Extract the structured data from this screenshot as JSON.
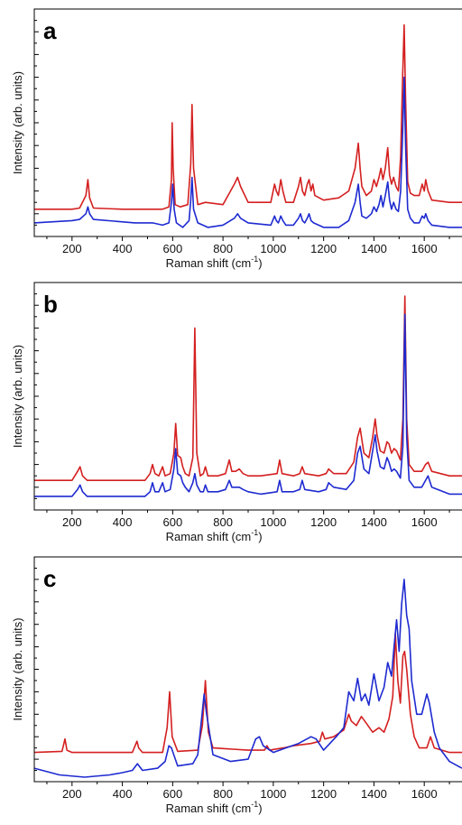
{
  "chart_data": [
    {
      "type": "line",
      "panel_label": "a",
      "xlabel_main": "Raman shift (cm",
      "xlabel_sup": "-1",
      "xlabel_close": ")",
      "ylabel": "Intensity (arb. units)",
      "xlim": [
        50,
        1750
      ],
      "ylim": [
        0,
        10
      ],
      "x_ticks": [
        200,
        400,
        600,
        800,
        1000,
        1200,
        1400,
        1600
      ],
      "y_tick_labels": "none",
      "grid": false,
      "series": [
        {
          "color": "#d42020",
          "x": [
            50,
            200,
            230,
            255,
            263,
            270,
            285,
            400,
            560,
            585,
            595,
            598,
            602,
            610,
            630,
            660,
            672,
            677,
            683,
            700,
            730,
            800,
            845,
            858,
            870,
            900,
            990,
            1005,
            1012,
            1020,
            1030,
            1038,
            1050,
            1080,
            1100,
            1108,
            1116,
            1125,
            1135,
            1142,
            1150,
            1157,
            1165,
            1200,
            1260,
            1300,
            1325,
            1338,
            1345,
            1352,
            1370,
            1390,
            1400,
            1410,
            1420,
            1428,
            1436,
            1445,
            1455,
            1462,
            1470,
            1478,
            1488,
            1497,
            1506,
            1514,
            1520,
            1526,
            1534,
            1545,
            1560,
            1580,
            1592,
            1600,
            1606,
            1615,
            1630,
            1700,
            1750
          ],
          "y": [
            1.2,
            1.2,
            1.25,
            1.8,
            2.5,
            1.7,
            1.25,
            1.2,
            1.2,
            1.3,
            2.5,
            5.0,
            3.0,
            1.4,
            1.3,
            1.4,
            3.2,
            5.8,
            3.0,
            1.4,
            1.5,
            1.4,
            2.3,
            2.6,
            2.2,
            1.5,
            1.5,
            2.3,
            2.0,
            1.8,
            2.5,
            2.0,
            1.5,
            1.5,
            2.2,
            2.6,
            2.0,
            1.8,
            2.3,
            2.5,
            2.0,
            2.3,
            1.8,
            1.6,
            1.7,
            2.0,
            3.0,
            4.1,
            3.0,
            2.2,
            1.8,
            2.0,
            2.5,
            2.2,
            2.6,
            3.0,
            2.5,
            3.0,
            3.9,
            2.7,
            2.3,
            2.6,
            2.2,
            2.0,
            3.5,
            7.0,
            9.3,
            6.0,
            2.4,
            1.9,
            1.8,
            1.8,
            2.3,
            2.0,
            2.5,
            2.0,
            1.6,
            1.5,
            1.5
          ]
        },
        {
          "color": "#1e2ad0",
          "x": [
            50,
            200,
            230,
            255,
            263,
            270,
            285,
            450,
            520,
            560,
            585,
            595,
            600,
            606,
            615,
            640,
            665,
            672,
            677,
            683,
            700,
            740,
            800,
            845,
            858,
            870,
            900,
            990,
            1005,
            1012,
            1020,
            1030,
            1038,
            1050,
            1080,
            1100,
            1108,
            1116,
            1125,
            1135,
            1142,
            1150,
            1160,
            1200,
            1260,
            1300,
            1325,
            1338,
            1345,
            1352,
            1370,
            1390,
            1400,
            1410,
            1420,
            1428,
            1436,
            1445,
            1455,
            1462,
            1470,
            1478,
            1488,
            1497,
            1506,
            1514,
            1520,
            1526,
            1534,
            1545,
            1560,
            1580,
            1592,
            1600,
            1606,
            1615,
            1630,
            1700,
            1750
          ],
          "y": [
            0.6,
            0.7,
            0.75,
            1.0,
            1.3,
            1.0,
            0.75,
            0.6,
            0.6,
            0.5,
            0.6,
            1.5,
            2.3,
            1.2,
            0.6,
            0.4,
            0.7,
            1.6,
            2.6,
            1.2,
            0.6,
            0.4,
            0.5,
            0.8,
            1.0,
            0.8,
            0.6,
            0.5,
            0.9,
            0.7,
            0.6,
            0.9,
            0.7,
            0.5,
            0.5,
            0.8,
            1.0,
            0.7,
            0.6,
            0.8,
            1.0,
            0.7,
            0.6,
            0.4,
            0.4,
            0.7,
            1.5,
            2.3,
            1.5,
            0.9,
            0.8,
            1.0,
            1.3,
            1.1,
            1.4,
            1.8,
            1.3,
            1.8,
            2.4,
            1.6,
            1.2,
            1.5,
            1.2,
            1.1,
            2.0,
            4.5,
            7.0,
            4.0,
            1.2,
            0.8,
            0.6,
            0.6,
            0.9,
            0.8,
            1.0,
            0.7,
            0.5,
            0.4,
            0.4
          ]
        }
      ]
    },
    {
      "type": "line",
      "panel_label": "b",
      "xlabel_main": "Raman shift (cm",
      "xlabel_sup": "-1",
      "xlabel_close": ")",
      "ylabel": "Intensity (arb. units)",
      "xlim": [
        50,
        1750
      ],
      "ylim": [
        0,
        10
      ],
      "x_ticks": [
        200,
        400,
        600,
        800,
        1000,
        1200,
        1400,
        1600
      ],
      "y_tick_labels": "none",
      "grid": false,
      "series": [
        {
          "color": "#d42020",
          "x": [
            50,
            200,
            222,
            232,
            242,
            260,
            400,
            490,
            510,
            520,
            530,
            545,
            560,
            570,
            590,
            605,
            612,
            620,
            632,
            640,
            650,
            665,
            680,
            688,
            696,
            710,
            722,
            730,
            740,
            780,
            810,
            825,
            835,
            850,
            865,
            880,
            900,
            950,
            1015,
            1025,
            1035,
            1080,
            1105,
            1115,
            1125,
            1180,
            1210,
            1220,
            1240,
            1290,
            1320,
            1335,
            1345,
            1360,
            1380,
            1395,
            1405,
            1412,
            1425,
            1440,
            1452,
            1460,
            1470,
            1480,
            1490,
            1505,
            1515,
            1523,
            1530,
            1540,
            1560,
            1590,
            1605,
            1615,
            1630,
            1700,
            1750
          ],
          "y": [
            1.3,
            1.3,
            1.7,
            1.9,
            1.5,
            1.3,
            1.3,
            1.3,
            1.6,
            2.0,
            1.6,
            1.5,
            1.9,
            1.5,
            1.6,
            2.5,
            3.8,
            2.4,
            2.3,
            1.9,
            1.6,
            1.5,
            2.3,
            8.0,
            2.5,
            1.5,
            1.6,
            1.9,
            1.5,
            1.5,
            1.6,
            2.2,
            1.7,
            1.7,
            1.8,
            1.6,
            1.5,
            1.5,
            1.6,
            2.2,
            1.6,
            1.5,
            1.6,
            1.9,
            1.6,
            1.5,
            1.6,
            1.8,
            1.6,
            1.6,
            2.1,
            3.2,
            3.6,
            2.5,
            2.3,
            3.2,
            4.0,
            3.3,
            2.6,
            2.5,
            3.0,
            2.9,
            2.5,
            2.7,
            2.6,
            2.2,
            4.0,
            9.4,
            4.0,
            2.0,
            1.7,
            1.7,
            2.0,
            2.1,
            1.7,
            1.5,
            1.5
          ]
        },
        {
          "color": "#1e2ad0",
          "x": [
            50,
            200,
            222,
            232,
            242,
            260,
            400,
            490,
            510,
            520,
            530,
            545,
            560,
            570,
            590,
            605,
            612,
            620,
            632,
            640,
            650,
            665,
            680,
            688,
            696,
            710,
            722,
            730,
            740,
            780,
            810,
            825,
            835,
            850,
            865,
            880,
            900,
            950,
            1015,
            1025,
            1035,
            1080,
            1105,
            1115,
            1125,
            1180,
            1210,
            1220,
            1240,
            1290,
            1320,
            1335,
            1345,
            1360,
            1380,
            1395,
            1405,
            1412,
            1425,
            1440,
            1452,
            1460,
            1470,
            1480,
            1490,
            1505,
            1515,
            1523,
            1530,
            1540,
            1560,
            1590,
            1605,
            1615,
            1630,
            1700,
            1750
          ],
          "y": [
            0.6,
            0.6,
            0.9,
            1.1,
            0.8,
            0.6,
            0.6,
            0.6,
            0.8,
            1.2,
            0.8,
            0.8,
            1.2,
            0.8,
            0.9,
            1.8,
            2.7,
            1.6,
            1.5,
            1.2,
            1.0,
            0.8,
            1.2,
            1.6,
            1.1,
            0.8,
            0.8,
            1.1,
            0.8,
            0.8,
            0.9,
            1.3,
            1.0,
            1.0,
            1.0,
            0.9,
            0.8,
            0.7,
            0.8,
            1.3,
            0.8,
            0.8,
            0.9,
            1.3,
            0.9,
            0.8,
            0.9,
            1.2,
            1.0,
            0.9,
            1.3,
            2.5,
            2.8,
            1.8,
            1.6,
            2.6,
            3.3,
            2.6,
            1.9,
            1.8,
            2.3,
            2.1,
            1.7,
            1.8,
            1.7,
            1.4,
            2.8,
            8.6,
            3.2,
            1.3,
            1.0,
            1.0,
            1.3,
            1.5,
            1.0,
            0.7,
            0.7
          ]
        }
      ]
    },
    {
      "type": "line",
      "panel_label": "c",
      "xlabel_main": "Raman shift (cm",
      "xlabel_sup": "-1",
      "xlabel_close": ")",
      "ylabel": "Intensity (arb. units)",
      "xlim": [
        50,
        1750
      ],
      "ylim": [
        0,
        10
      ],
      "x_ticks": [
        200,
        400,
        600,
        800,
        1000,
        1200,
        1400,
        1600
      ],
      "y_tick_labels": "none",
      "grid": false,
      "series": [
        {
          "color": "#d42020",
          "x": [
            50,
            160,
            172,
            180,
            200,
            440,
            458,
            465,
            480,
            560,
            578,
            588,
            598,
            620,
            700,
            718,
            730,
            742,
            760,
            900,
            965,
            975,
            985,
            1040,
            1080,
            1150,
            1185,
            1195,
            1205,
            1240,
            1280,
            1300,
            1310,
            1330,
            1350,
            1370,
            1395,
            1420,
            1440,
            1460,
            1475,
            1485,
            1495,
            1505,
            1515,
            1522,
            1530,
            1545,
            1560,
            1580,
            1610,
            1625,
            1640,
            1700,
            1750
          ],
          "y": [
            1.3,
            1.35,
            1.9,
            1.4,
            1.3,
            1.3,
            1.8,
            1.5,
            1.3,
            1.3,
            2.4,
            4.0,
            2.0,
            1.35,
            1.4,
            2.5,
            4.5,
            2.2,
            1.5,
            1.4,
            1.4,
            1.6,
            1.4,
            1.5,
            1.6,
            1.7,
            1.8,
            2.2,
            1.9,
            2.0,
            2.3,
            3.0,
            2.7,
            2.5,
            2.9,
            2.6,
            2.2,
            2.4,
            2.2,
            2.8,
            3.8,
            6.6,
            4.5,
            3.5,
            5.6,
            5.8,
            5.0,
            3.0,
            2.0,
            1.5,
            1.5,
            2.0,
            1.5,
            1.3,
            1.3
          ]
        },
        {
          "color": "#1e2ad0",
          "x": [
            50,
            150,
            250,
            350,
            400,
            440,
            460,
            480,
            540,
            570,
            585,
            595,
            620,
            680,
            700,
            715,
            725,
            735,
            760,
            830,
            900,
            930,
            945,
            960,
            1000,
            1050,
            1100,
            1150,
            1170,
            1200,
            1250,
            1280,
            1300,
            1320,
            1335,
            1350,
            1365,
            1380,
            1400,
            1420,
            1440,
            1455,
            1470,
            1480,
            1490,
            1500,
            1510,
            1520,
            1530,
            1540,
            1550,
            1570,
            1590,
            1610,
            1620,
            1640,
            1660,
            1700,
            1750
          ],
          "y": [
            0.6,
            0.3,
            0.2,
            0.3,
            0.4,
            0.5,
            0.8,
            0.5,
            0.6,
            0.9,
            1.6,
            1.5,
            0.7,
            0.8,
            1.2,
            2.8,
            3.9,
            3.0,
            1.2,
            0.9,
            1.0,
            1.9,
            2.0,
            1.6,
            1.3,
            1.5,
            1.7,
            2.0,
            1.9,
            1.4,
            2.0,
            2.4,
            4.0,
            3.6,
            4.6,
            3.6,
            3.9,
            3.4,
            4.8,
            3.6,
            4.2,
            5.3,
            4.7,
            6.0,
            7.2,
            5.8,
            7.9,
            9.0,
            7.4,
            6.8,
            4.5,
            3.0,
            3.0,
            3.9,
            3.5,
            2.2,
            1.5,
            0.9,
            0.6
          ]
        }
      ]
    }
  ]
}
